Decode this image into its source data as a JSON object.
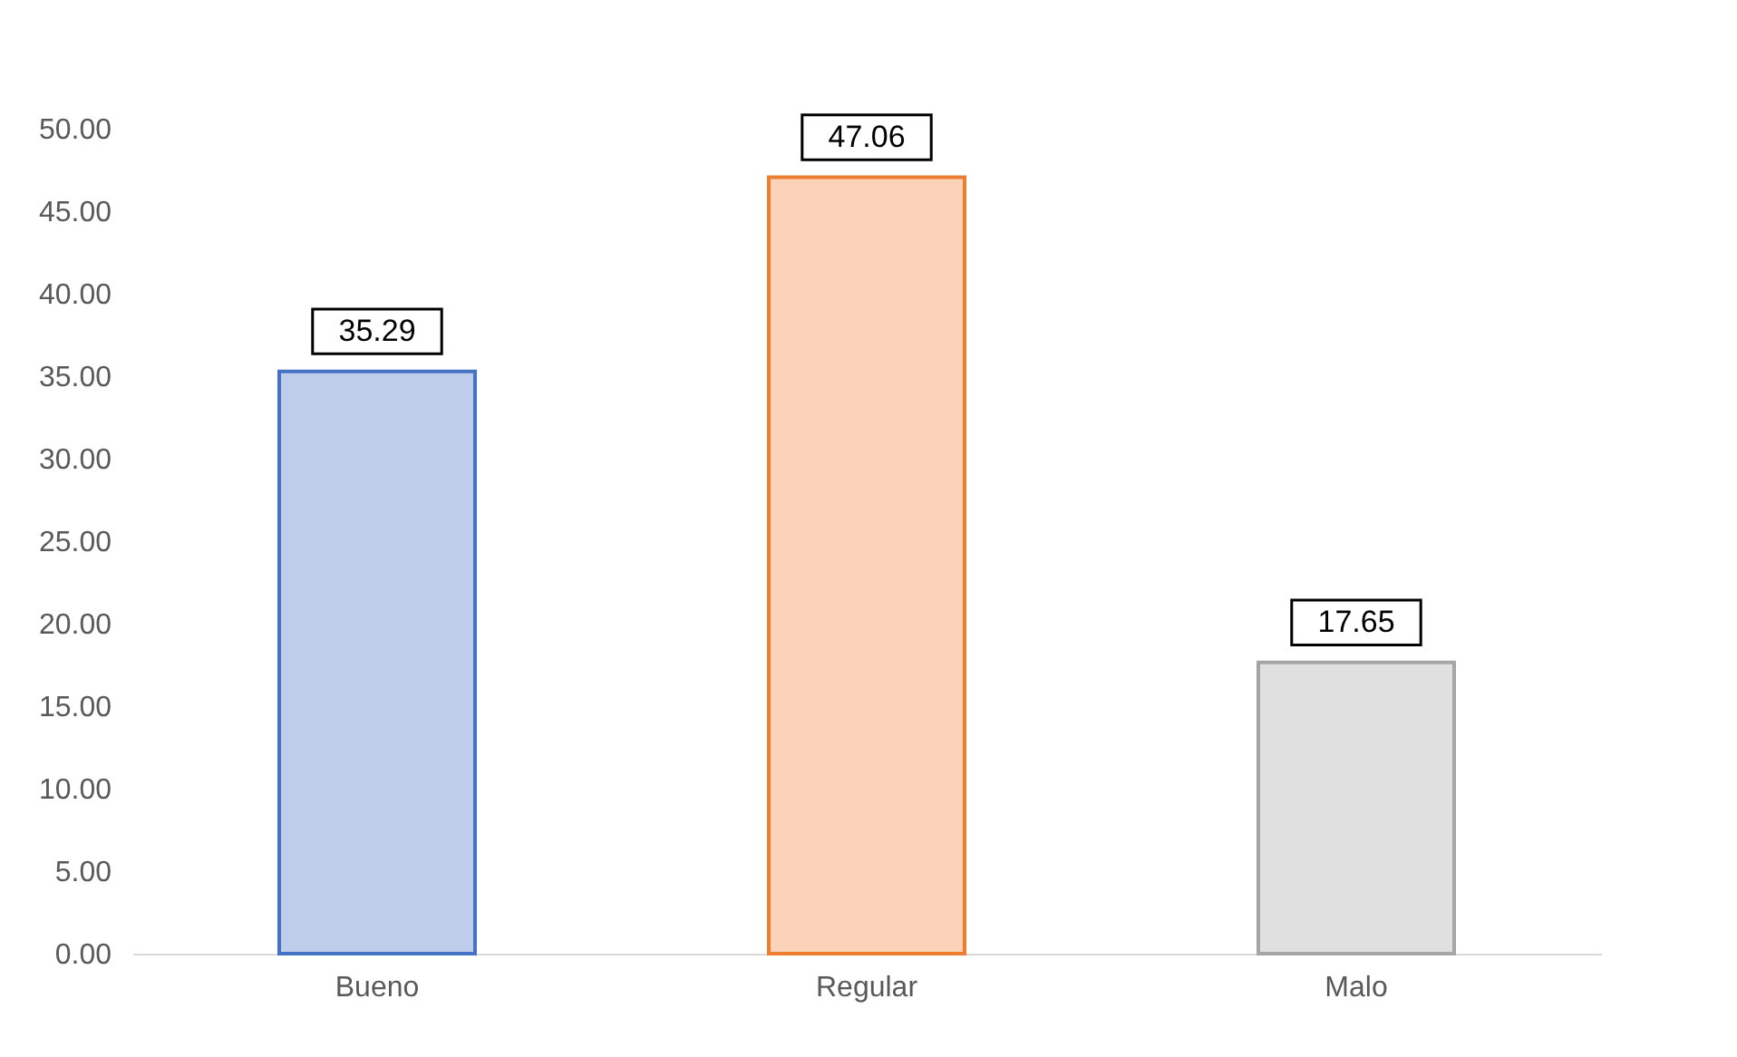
{
  "chart_data": {
    "type": "bar",
    "categories": [
      "Bueno",
      "Regular",
      "Malo"
    ],
    "values": [
      35.29,
      47.06,
      17.65
    ],
    "colors": [
      "#4472c4",
      "#ed7d31",
      "#a5a5a5"
    ],
    "ylim": [
      0,
      50
    ],
    "yticks": [
      {
        "value": 0,
        "label": "0.00"
      },
      {
        "value": 5,
        "label": "5.00"
      },
      {
        "value": 10,
        "label": "10.00"
      },
      {
        "value": 15,
        "label": "15.00"
      },
      {
        "value": 20,
        "label": "20.00"
      },
      {
        "value": 25,
        "label": "25.00"
      },
      {
        "value": 30,
        "label": "30.00"
      },
      {
        "value": 35,
        "label": "35.00"
      },
      {
        "value": 40,
        "label": "40.00"
      },
      {
        "value": 45,
        "label": "45.00"
      },
      {
        "value": 50,
        "label": "50.00"
      }
    ],
    "grid": false,
    "data_labels": true
  }
}
